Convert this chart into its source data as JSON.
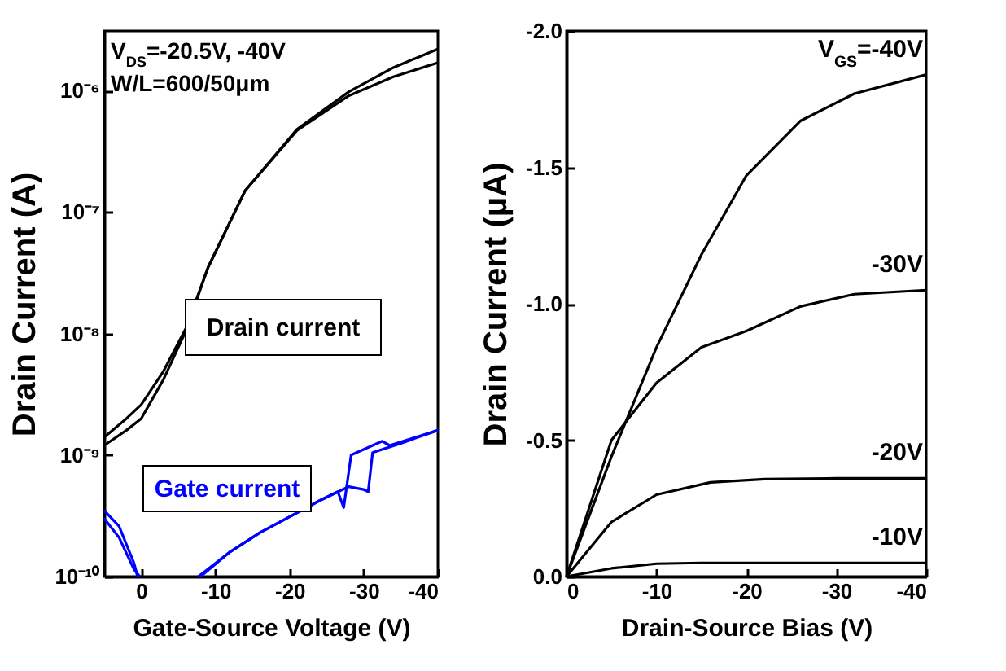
{
  "chart_data": [
    {
      "type": "line",
      "xlabel": "Gate-Source Voltage (V)",
      "ylabel": "Drain Current (A)",
      "log": "y",
      "xlim": [
        5,
        -40
      ],
      "xticks": [
        0,
        -10,
        -20,
        -30,
        -40
      ],
      "ylim": [
        1e-10,
        3.1e-06
      ],
      "yticks": [
        {
          "value": 1e-10,
          "label": "10⁻¹⁰"
        },
        {
          "value": 1e-09,
          "label": "10⁻⁹"
        },
        {
          "value": 1e-08,
          "label": "10⁻⁸"
        },
        {
          "value": 1e-07,
          "label": "10⁻⁷"
        },
        {
          "value": 1e-06,
          "label": "10⁻⁶"
        }
      ],
      "annotations": [
        "V$_{DS}$=-20.5V, -40V",
        "W/L=600/50μm"
      ],
      "grid": false,
      "legend": false,
      "marker": "none",
      "line_style": "solid",
      "series": [
        {
          "name": "Drain current",
          "color": "#000000",
          "x": [
            5,
            2,
            0,
            -3,
            -6,
            -9,
            -14,
            -21,
            -28,
            -34,
            -40
          ],
          "values": [
            1.4e-09,
            2e-09,
            2.6e-09,
            4.9e-09,
            1.1e-08,
            3.5e-08,
            1.5e-07,
            4.8e-07,
            9.8e-07,
            1.55e-06,
            2.2e-06
          ]
        },
        {
          "color": "#000000",
          "x": [
            5,
            2,
            0,
            -3,
            -6,
            -9,
            -14,
            -21,
            -28,
            -34,
            -40
          ],
          "values": [
            1.2e-09,
            1.6e-09,
            2e-09,
            4.2e-09,
            1.05e-08,
            3.5e-08,
            1.5e-07,
            4.7e-07,
            9.1e-07,
            1.3e-06,
            1.7e-06
          ]
        },
        {
          "name": "Gate current",
          "color": "#0000ff",
          "x": [
            -8,
            -12,
            -16,
            -20,
            -24,
            -26.5,
            -27.3,
            -28.3,
            -32.5,
            -33.5,
            -40
          ],
          "values": [
            1e-10,
            1.6e-10,
            2.3e-10,
            3.1e-10,
            4.2e-10,
            5e-10,
            3.7e-10,
            1e-09,
            1.3e-09,
            1.2e-09,
            1.6e-09
          ]
        },
        {
          "color": "#0000ff",
          "x": [
            -7.7,
            -12,
            -16,
            -20,
            -24,
            -28,
            -30,
            -30.6,
            -31.2,
            -35,
            -40
          ],
          "values": [
            1e-10,
            1.6e-10,
            2.3e-10,
            3.1e-10,
            4.2e-10,
            5.5e-10,
            5.2e-10,
            5e-10,
            1.05e-09,
            1.25e-09,
            1.6e-09
          ]
        },
        {
          "color": "#0000ff",
          "x": [
            5,
            3,
            1,
            0.5
          ],
          "values": [
            3.5e-10,
            2.6e-10,
            1.3e-10,
            1e-10
          ]
        },
        {
          "color": "#0000ff",
          "x": [
            5,
            3,
            1,
            0.2
          ],
          "values": [
            3e-10,
            2.1e-10,
            1.15e-10,
            1e-10
          ]
        }
      ]
    },
    {
      "type": "line",
      "xlabel": "Drain-Source Bias (V)",
      "ylabel": "Drain Current (μA)",
      "xlim": [
        0,
        -40
      ],
      "xticks": [
        0,
        -10,
        -20,
        -30,
        -40
      ],
      "ylim": [
        0,
        -2.0
      ],
      "yticks": [
        {
          "value": 0,
          "label": "0.0"
        },
        {
          "value": -0.5,
          "label": "-0.5"
        },
        {
          "value": -1.0,
          "label": "-1.0"
        },
        {
          "value": -1.5,
          "label": "-1.5"
        },
        {
          "value": -2.0,
          "label": "-2.0"
        }
      ],
      "grid": false,
      "legend": false,
      "marker": "none",
      "line_style": "solid",
      "series": [
        {
          "name": "V$_{GS}$=-40V",
          "color": "#000000",
          "x": [
            0,
            -5,
            -10,
            -15,
            -20,
            -26,
            -32,
            -40
          ],
          "values": [
            0,
            -0.44,
            -0.84,
            -1.18,
            -1.47,
            -1.67,
            -1.77,
            -1.84
          ]
        },
        {
          "name": "-30V",
          "color": "#000000",
          "x": [
            0,
            -5,
            -10,
            -15,
            -20,
            -26,
            -32,
            -40
          ],
          "values": [
            0,
            -0.5,
            -0.71,
            -0.84,
            -0.9,
            -0.99,
            -1.035,
            -1.05
          ]
        },
        {
          "name": "-20V",
          "color": "#000000",
          "x": [
            0,
            -5,
            -10,
            -16,
            -22,
            -30,
            -40
          ],
          "values": [
            0,
            -0.2,
            -0.3,
            -0.345,
            -0.357,
            -0.36,
            -0.36
          ]
        },
        {
          "name": "-10V",
          "color": "#000000",
          "x": [
            0,
            -5,
            -10,
            -15,
            -25,
            -40
          ],
          "values": [
            0,
            -0.03,
            -0.047,
            -0.05,
            -0.05,
            -0.05
          ]
        }
      ]
    }
  ]
}
